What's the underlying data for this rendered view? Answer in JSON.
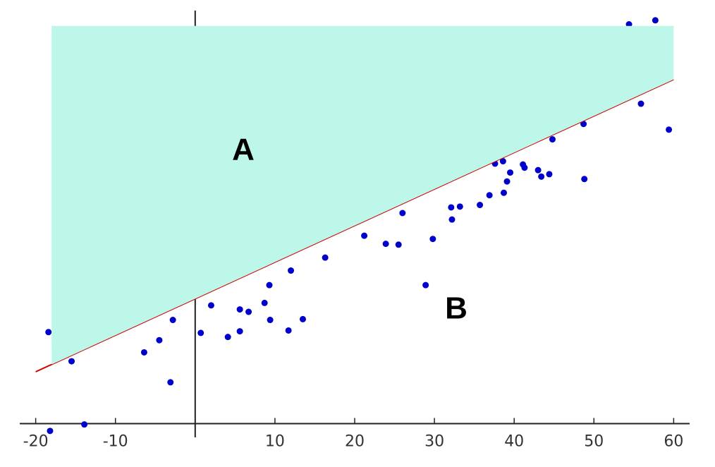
{
  "chart_data": {
    "type": "scatter",
    "x": [
      -18.4,
      -15.5,
      -13.9,
      -18.2,
      -6.4,
      -4.5,
      -3.1,
      -2.8,
      0.7,
      2.0,
      4.1,
      5.6,
      5.6,
      6.7,
      8.7,
      9.3,
      9.4,
      11.7,
      12.0,
      13.5,
      16.3,
      21.2,
      23.9,
      25.5,
      26.0,
      28.9,
      29.8,
      32.1,
      32.2,
      33.2,
      35.7,
      36.9,
      37.6,
      38.6,
      38.7,
      39.1,
      39.5,
      41.1,
      41.3,
      43.0,
      43.4,
      44.4,
      44.8,
      48.7,
      48.8,
      54.4,
      55.9,
      57.7,
      59.4
    ],
    "values": [
      11.3,
      7.7,
      -0.1,
      -0.9,
      8.8,
      10.3,
      5.1,
      12.8,
      11.2,
      14.6,
      10.7,
      11.4,
      14.1,
      13.8,
      14.9,
      17.1,
      12.8,
      11.5,
      18.9,
      12.9,
      20.5,
      23.2,
      22.2,
      22.1,
      26.0,
      17.1,
      22.8,
      26.7,
      25.2,
      26.8,
      27.0,
      28.2,
      32.1,
      32.4,
      28.5,
      29.9,
      31.0,
      32.0,
      31.6,
      31.3,
      30.5,
      30.8,
      35.1,
      37.0,
      30.2,
      49.3,
      39.5,
      49.8,
      36.3
    ],
    "color": "#0000cc",
    "fit": {
      "x": [
        -20,
        60
      ],
      "values": [
        6.4,
        42.5
      ],
      "color": "#cc0000"
    },
    "region": {
      "x": [
        -18,
        60
      ],
      "top": 49.1,
      "color": "#bdf7ea"
    },
    "annotations": [
      "A",
      "B"
    ],
    "xlim": [
      -22,
      62
    ],
    "ylim": [
      -1.7,
      51
    ],
    "xticks": [
      -20,
      -10,
      10,
      20,
      30,
      40,
      50,
      60
    ]
  }
}
